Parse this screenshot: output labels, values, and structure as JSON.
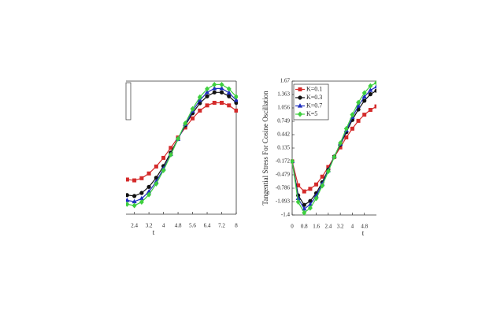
{
  "chart_data": [
    {
      "type": "line",
      "xlabel": "t",
      "x": [
        2.0,
        2.4,
        2.8,
        3.2,
        3.6,
        4.0,
        4.4,
        4.8,
        5.2,
        5.6,
        6.0,
        6.4,
        6.8,
        7.2,
        7.6,
        8.0
      ],
      "series": [
        {
          "color": "#d42a2a",
          "marker": "square",
          "values": [
            -0.6,
            -0.62,
            -0.57,
            -0.46,
            -0.3,
            -0.1,
            0.13,
            0.37,
            0.6,
            0.81,
            0.99,
            1.11,
            1.17,
            1.17,
            1.11,
            0.99
          ]
        },
        {
          "color": "#111111",
          "marker": "circle",
          "values": [
            -0.96,
            -0.98,
            -0.91,
            -0.77,
            -0.56,
            -0.29,
            0.02,
            0.34,
            0.65,
            0.93,
            1.16,
            1.32,
            1.41,
            1.41,
            1.32,
            1.17
          ]
        },
        {
          "color": "#1f2fbf",
          "marker": "triangle",
          "values": [
            -1.08,
            -1.11,
            -1.04,
            -0.88,
            -0.65,
            -0.35,
            -0.02,
            0.33,
            0.67,
            0.98,
            1.23,
            1.41,
            1.5,
            1.5,
            1.4,
            1.23
          ]
        },
        {
          "color": "#3ecf3e",
          "marker": "diamond",
          "values": [
            -1.17,
            -1.2,
            -1.12,
            -0.95,
            -0.7,
            -0.39,
            -0.03,
            0.34,
            0.7,
            1.03,
            1.3,
            1.49,
            1.59,
            1.59,
            1.49,
            1.31
          ]
        }
      ],
      "xlim": [
        1.94,
        8
      ],
      "xticks": [
        2.4,
        3.2,
        4,
        4.8,
        5.6,
        6.4,
        7.2,
        8
      ],
      "ylim": [
        -1.4,
        1.67
      ]
    },
    {
      "type": "line",
      "xlabel": "t",
      "ylabel": "Tangential Stress For Cosine Oscillation",
      "x": [
        0,
        0.4,
        0.8,
        1.2,
        1.6,
        2.0,
        2.4,
        2.8,
        3.2,
        3.6,
        4.0,
        4.4,
        4.8,
        5.2,
        5.6
      ],
      "series": [
        {
          "name": "K=0.1",
          "color": "#d42a2a",
          "marker": "square",
          "values": [
            -0.17,
            -0.72,
            -0.86,
            -0.8,
            -0.7,
            -0.52,
            -0.3,
            -0.07,
            0.15,
            0.38,
            0.58,
            0.76,
            0.9,
            1.01,
            1.09
          ]
        },
        {
          "name": "K=0.3",
          "color": "#111111",
          "marker": "circle",
          "values": [
            -0.17,
            -0.95,
            -1.17,
            -1.08,
            -0.9,
            -0.65,
            -0.36,
            -0.06,
            0.21,
            0.5,
            0.78,
            1.02,
            1.22,
            1.37,
            1.45
          ]
        },
        {
          "name": "K=0.7",
          "color": "#1f2fbf",
          "marker": "triangle",
          "values": [
            -0.17,
            -1.02,
            -1.26,
            -1.16,
            -0.96,
            -0.69,
            -0.38,
            -0.06,
            0.23,
            0.54,
            0.84,
            1.1,
            1.31,
            1.46,
            1.54
          ]
        },
        {
          "name": "K=5",
          "color": "#3ecf3e",
          "marker": "diamond",
          "values": [
            -0.17,
            -1.1,
            -1.35,
            -1.24,
            -1.02,
            -0.73,
            -0.4,
            -0.07,
            0.25,
            0.58,
            0.9,
            1.18,
            1.4,
            1.56,
            1.63
          ]
        }
      ],
      "xlim": [
        0,
        5.6
      ],
      "xticks": [
        0,
        0.8,
        1.6,
        2.4,
        3.2,
        4,
        4.8
      ],
      "ylim": [
        -1.4,
        1.67
      ],
      "yticks": [
        1.67,
        1.363,
        1.056,
        0.749,
        0.442,
        0.135,
        -0.172,
        -0.479,
        -0.786,
        -1.093,
        -1.4
      ],
      "legend": "upper left"
    }
  ]
}
